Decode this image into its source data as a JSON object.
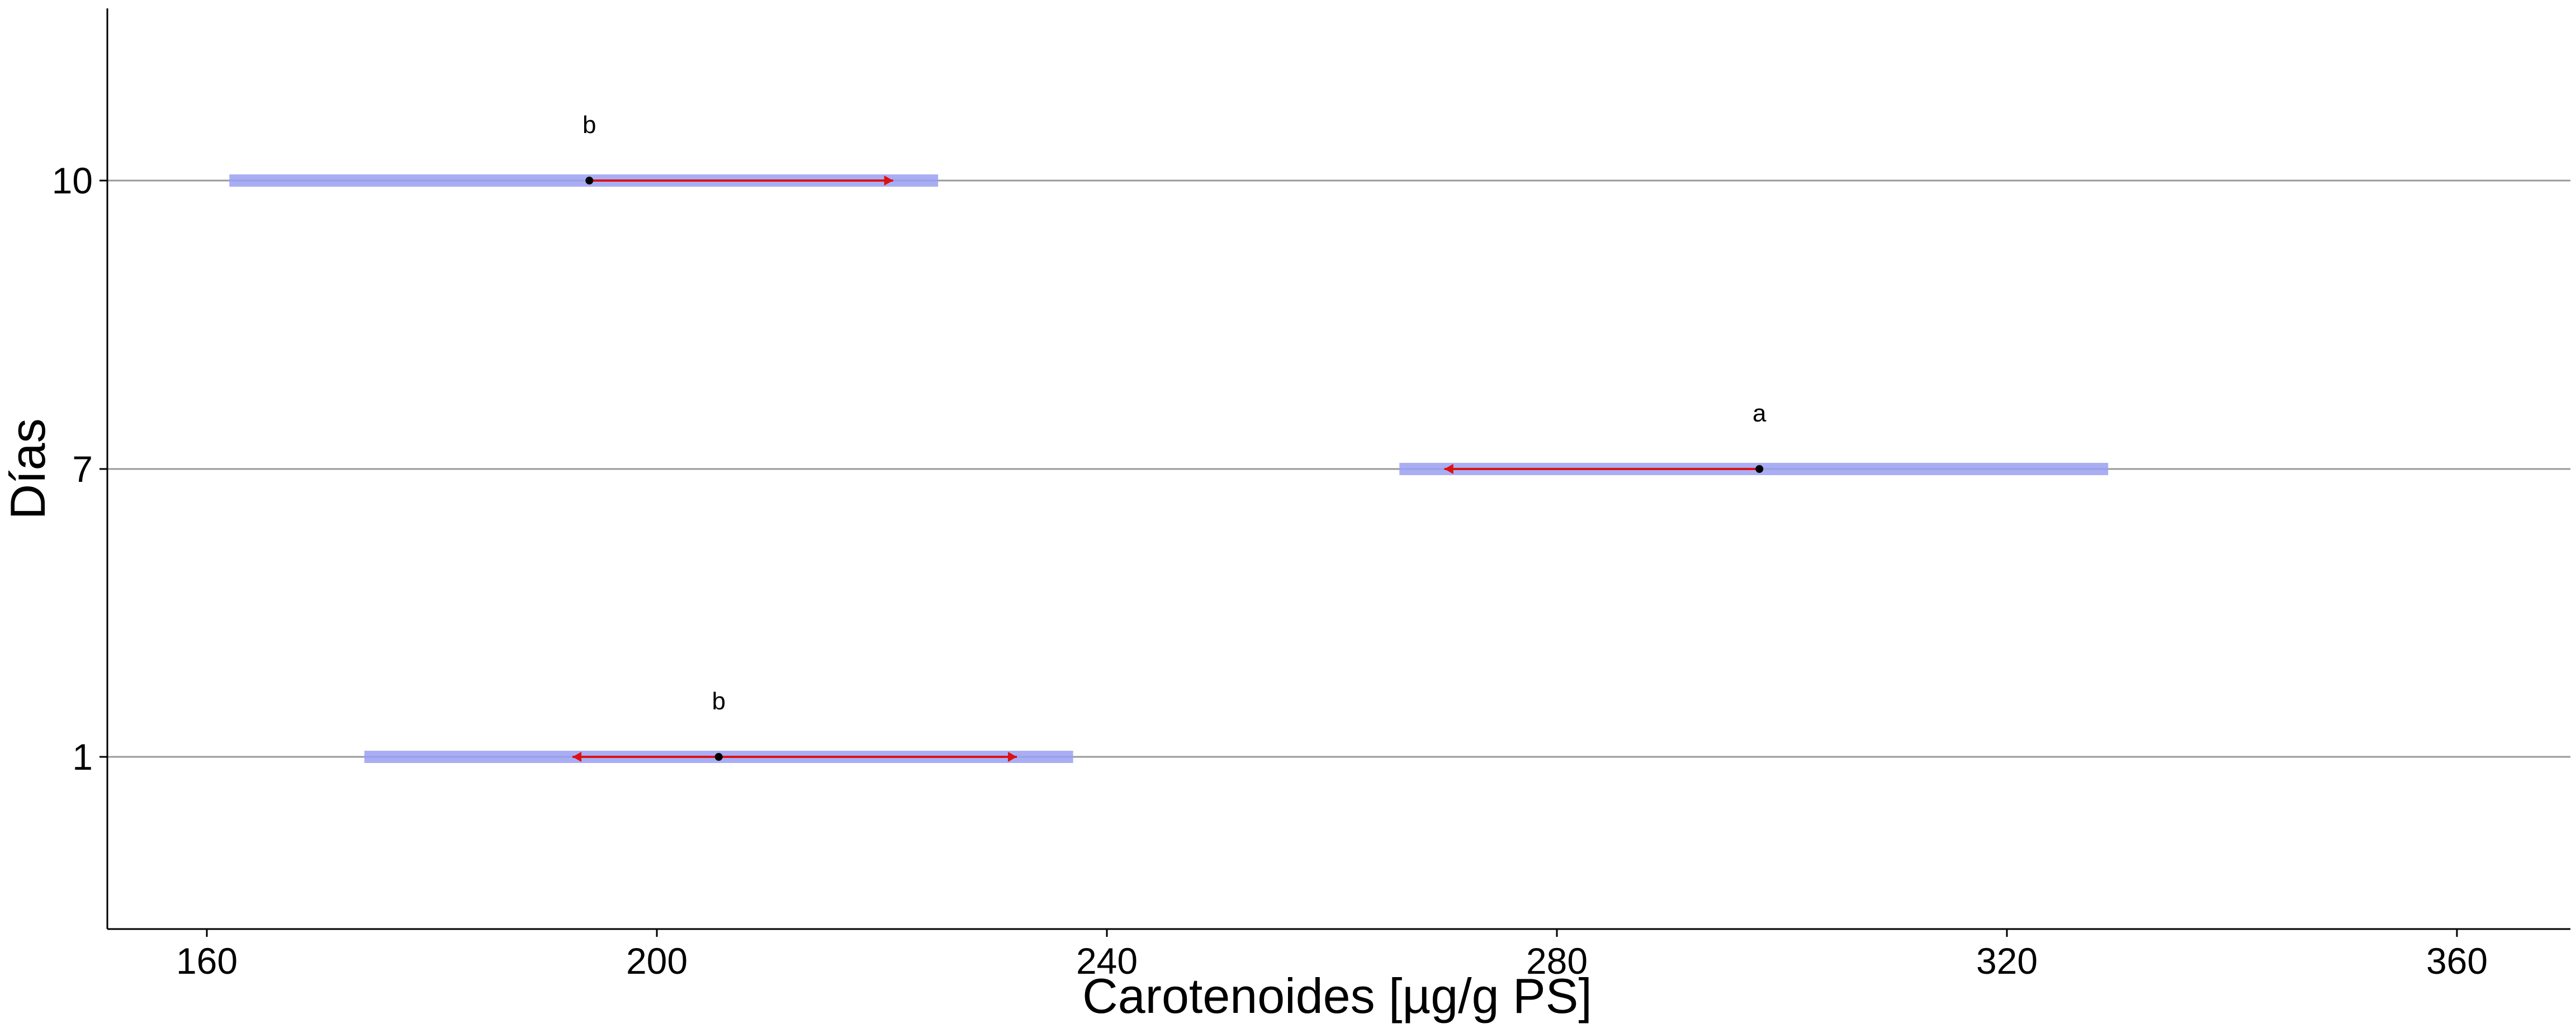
{
  "chart_data": {
    "type": "interval",
    "title": "",
    "xlabel": "Carotenoides [µg/g PS]",
    "ylabel": "Días",
    "xlim": [
      150,
      363
    ],
    "x_ticks": [
      160,
      200,
      240,
      280,
      320,
      360
    ],
    "categories": [
      "1",
      "7",
      "10"
    ],
    "series": [
      {
        "values": [
          {
            "category": "1",
            "mean": 205.5,
            "low": 174,
            "high": 237,
            "arrow_low": 192.5,
            "arrow_high": 232,
            "letter": "b"
          },
          {
            "category": "7",
            "mean": 298,
            "low": 266,
            "high": 329,
            "arrow_low": 270,
            "arrow_high": 298,
            "letter": "a"
          },
          {
            "category": "10",
            "mean": 194,
            "low": 162,
            "high": 225,
            "arrow_low": 194,
            "arrow_high": 221,
            "letter": "b"
          }
        ]
      }
    ],
    "grid": {
      "horizontal": true,
      "vertical": false
    },
    "colors": {
      "band": "#9aa0f2",
      "arrow": "#dd1111",
      "point": "#000000",
      "gridline": "#999999",
      "axis": "#000000"
    }
  }
}
